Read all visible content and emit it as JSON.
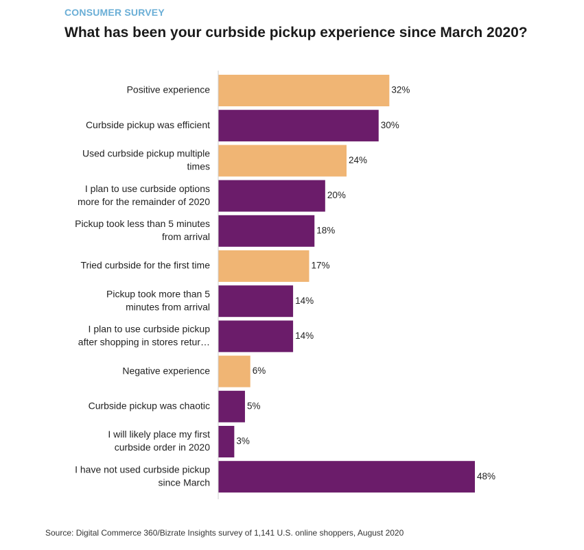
{
  "header": {
    "kicker": "CONSUMER SURVEY",
    "title": "What has been your curbside pickup experience since March 2020?"
  },
  "footer": {
    "source": "Source: Digital Commerce 360/Bizrate Insights survey of 1,141 U.S. online shoppers, August 2020"
  },
  "colors": {
    "orange": "#f0b574",
    "purple": "#6b1c6a"
  },
  "chart_data": {
    "type": "bar",
    "orientation": "horizontal",
    "title": "What has been your curbside pickup experience since March 2020?",
    "xlabel": "",
    "ylabel": "",
    "grid": false,
    "xlim": [
      0,
      50
    ],
    "categories": [
      [
        "Positive experience"
      ],
      [
        "Curbside pickup was efficient"
      ],
      [
        "Used curbside pickup multiple",
        "times"
      ],
      [
        "I plan to use curbside options",
        "more for the remainder of 2020"
      ],
      [
        "Pickup took less than 5 minutes",
        "from arrival"
      ],
      [
        "Tried curbside for the first time"
      ],
      [
        "Pickup took more than 5",
        "minutes from arrival"
      ],
      [
        "I plan to use curbside pickup",
        "after shopping in stores retur…"
      ],
      [
        "Negative experience"
      ],
      [
        "Curbside pickup was chaotic"
      ],
      [
        "I will likely place my first",
        "curbside order in 2020"
      ],
      [
        "I have not used curbside pickup",
        "since March"
      ]
    ],
    "values": [
      32,
      30,
      24,
      20,
      18,
      17,
      14,
      14,
      6,
      5,
      3,
      48
    ],
    "value_labels": [
      "32%",
      "30%",
      "24%",
      "20%",
      "18%",
      "17%",
      "14%",
      "14%",
      "6%",
      "5%",
      "3%",
      "48%"
    ],
    "bar_colors": [
      "orange",
      "purple",
      "orange",
      "purple",
      "purple",
      "orange",
      "purple",
      "purple",
      "orange",
      "purple",
      "purple",
      "purple"
    ]
  }
}
